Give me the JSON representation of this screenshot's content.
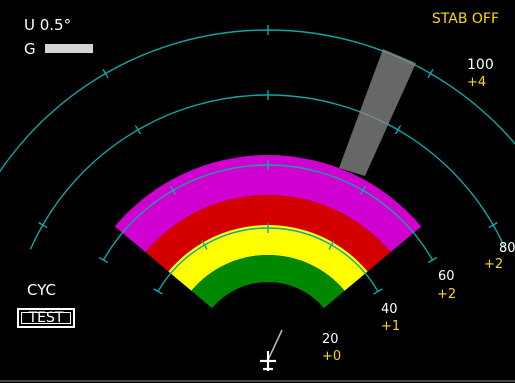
{
  "display": {
    "mode": "U 0.5°",
    "gain_label": "G",
    "stab_status": "STAB OFF",
    "cycle_label": "CYC",
    "test_button_label": "TEST"
  },
  "range_marks": [
    {
      "range": "100",
      "tilt": "+4"
    },
    {
      "range": "80",
      "tilt": "+2"
    },
    {
      "range": "60",
      "tilt": "+2"
    },
    {
      "range": "40",
      "tilt": "+1"
    },
    {
      "range": "20",
      "tilt": "+0"
    }
  ],
  "precip_bands": [
    {
      "name": "magenta",
      "color": "#d000d0"
    },
    {
      "name": "red",
      "color": "#d40000"
    },
    {
      "name": "yellow",
      "color": "#ffff00"
    },
    {
      "name": "green",
      "color": "#008800"
    }
  ],
  "colors": {
    "range_arc": "#0fa6a6",
    "text_yellow": "#ffd800",
    "aircraft_symbol": "#ffffff",
    "background": "#000000"
  },
  "icons": {
    "aircraft": "aircraft-symbol-icon",
    "scan_sector": "scan-sector-icon"
  }
}
